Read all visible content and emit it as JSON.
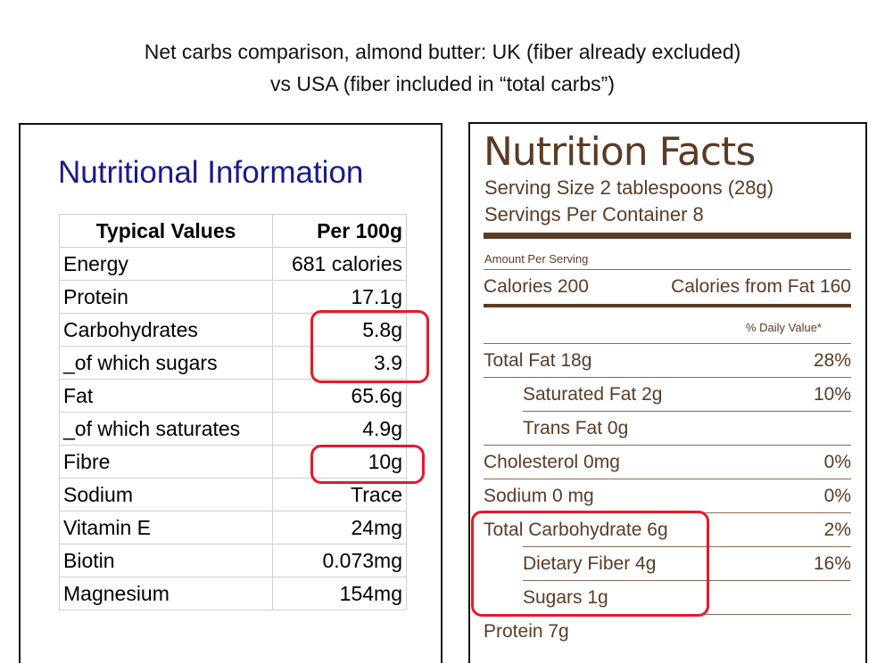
{
  "caption": {
    "line1": "Net carbs comparison, almond butter: UK (fiber already excluded)",
    "line2": "vs USA (fiber included in “total carbs”)"
  },
  "uk_label": {
    "title": "Nutritional Information",
    "header": {
      "col1": "Typical Values",
      "col2": "Per 100g"
    },
    "rows": [
      {
        "label": "Energy",
        "value": "681 calories"
      },
      {
        "label": "Protein",
        "value": "17.1g"
      },
      {
        "label": "Carbohydrates",
        "value": "5.8g"
      },
      {
        "label": "_of which sugars",
        "value": "3.9"
      },
      {
        "label": "Fat",
        "value": "65.6g"
      },
      {
        "label": "_of which saturates",
        "value": "4.9g"
      },
      {
        "label": "Fibre",
        "value": "10g"
      },
      {
        "label": "Sodium",
        "value": "Trace"
      },
      {
        "label": "Vitamin E",
        "value": "24mg"
      },
      {
        "label": "Biotin",
        "value": "0.073mg"
      },
      {
        "label": "Magnesium",
        "value": "154mg"
      }
    ]
  },
  "us_label": {
    "title": "Nutrition Facts",
    "serving_size": "Serving Size 2 tablespoons (28g)",
    "servings_per_container": "Servings Per Container 8",
    "amount_per_serving": "Amount Per Serving",
    "calories": "Calories 200",
    "calories_from_fat": "Calories from Fat 160",
    "daily_value_header": "% Daily Value*",
    "rows": [
      {
        "label": "Total Fat 18g",
        "value": "28%"
      },
      {
        "label": "Saturated Fat 2g",
        "value": "10%"
      },
      {
        "label": "Trans Fat 0g",
        "value": ""
      },
      {
        "label": "Cholesterol 0mg",
        "value": "0%"
      },
      {
        "label": "Sodium 0 mg",
        "value": "0%"
      },
      {
        "label": "Total Carbohydrate 6g",
        "value": "2%"
      },
      {
        "label": "Dietary Fiber 4g",
        "value": "16%"
      },
      {
        "label": "Sugars 1g",
        "value": ""
      },
      {
        "label": "Protein 7g",
        "value": ""
      }
    ]
  },
  "colors": {
    "uk_title": "#1a1a8f",
    "us_text": "#5b3b26",
    "highlight": "#e8182a"
  }
}
